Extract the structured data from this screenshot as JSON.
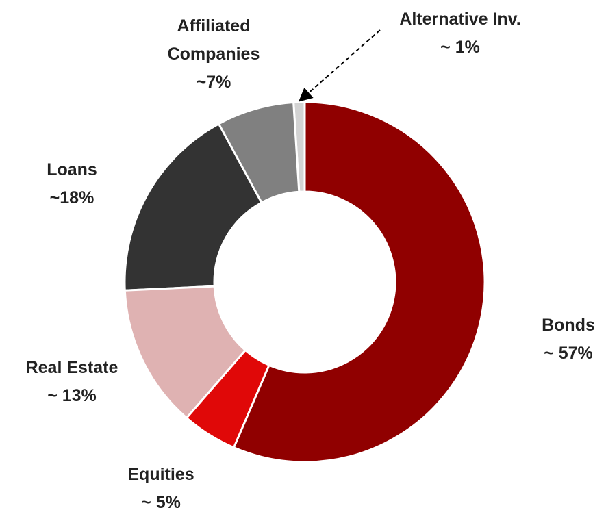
{
  "chart_data": {
    "type": "donut",
    "categories": [
      "Bonds",
      "Equities",
      "Real Estate",
      "Loans",
      "Affiliated Companies",
      "Alternative Inv."
    ],
    "values": [
      57,
      5,
      13,
      18,
      7,
      1
    ],
    "value_labels": [
      "~ 57%",
      "~ 5%",
      "~ 13%",
      "~18%",
      "~7%",
      "~ 1%"
    ],
    "colors": [
      "#900000",
      "#e00808",
      "#dfb2b2",
      "#333333",
      "#808080",
      "#d3d3d3"
    ]
  }
}
